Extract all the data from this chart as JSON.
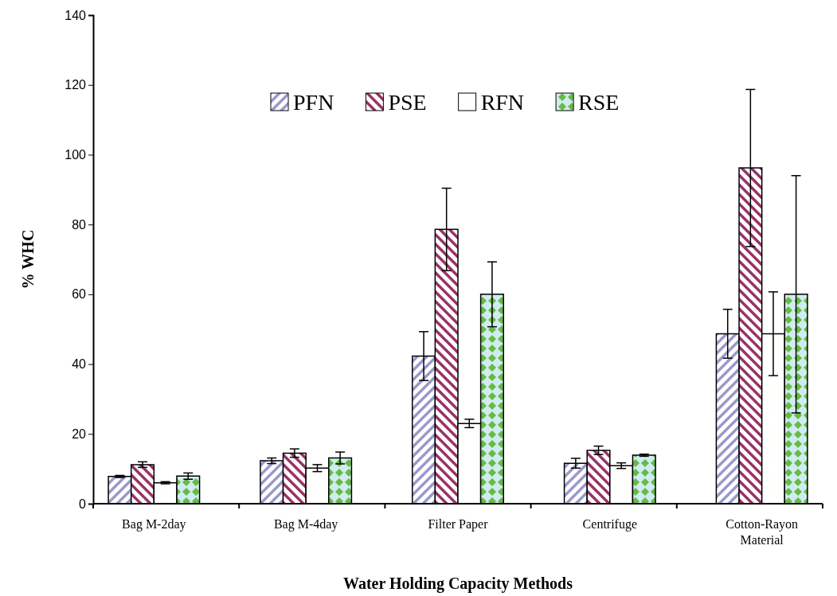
{
  "chart_data": {
    "type": "bar",
    "xlabel": "Water Holding Capacity Methods",
    "ylabel": "% WHC",
    "categories": [
      "Bag M-2day",
      "Bag M-4day",
      "Filter Paper",
      "Centrifuge",
      "Cotton-Rayon Material"
    ],
    "series": [
      {
        "name": "PFN",
        "color": "#9999cc",
        "values": [
          7.8,
          12.3,
          42.3,
          11.6,
          48.7
        ],
        "errors": [
          0.3,
          0.8,
          7,
          1.4,
          7
        ]
      },
      {
        "name": "PSE",
        "color": "#993366",
        "values": [
          11.2,
          14.5,
          78.6,
          15.3,
          96.2
        ],
        "errors": [
          0.8,
          1.2,
          11.8,
          1.2,
          22.5
        ]
      },
      {
        "name": "RFN",
        "color": "#ffffcc",
        "values": [
          6,
          10.2,
          23,
          10.9,
          48.7
        ],
        "errors": [
          0.3,
          1,
          1.2,
          0.8,
          12
        ]
      },
      {
        "name": "RSE",
        "color": "#66bb44",
        "values": [
          7.9,
          13.1,
          60,
          13.9,
          60
        ],
        "errors": [
          0.9,
          1.7,
          9.3,
          0.3,
          34
        ]
      }
    ],
    "ylim": [
      0,
      140
    ],
    "yticks": [
      0,
      20,
      40,
      60,
      80,
      100,
      120,
      140
    ],
    "grid": false,
    "legend": "top"
  }
}
